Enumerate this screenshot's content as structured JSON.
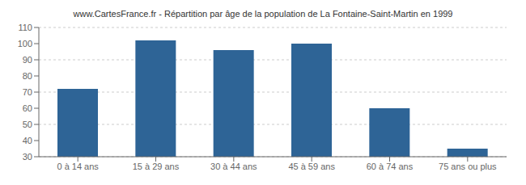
{
  "chart_data": {
    "type": "bar",
    "title": "www.CartesFrance.fr - Répartition par âge de la population de La Fontaine-Saint-Martin en 1999",
    "categories": [
      "0 à 14 ans",
      "15 à 29 ans",
      "30 à 44 ans",
      "45 à 59 ans",
      "60 à 74 ans",
      "75 ans ou plus"
    ],
    "values": [
      72,
      102,
      96,
      100,
      60,
      35
    ],
    "color": "#2e6496",
    "ylim": [
      30,
      110
    ],
    "yticks": [
      30,
      40,
      50,
      60,
      70,
      80,
      90,
      100,
      110
    ],
    "grid": true
  }
}
